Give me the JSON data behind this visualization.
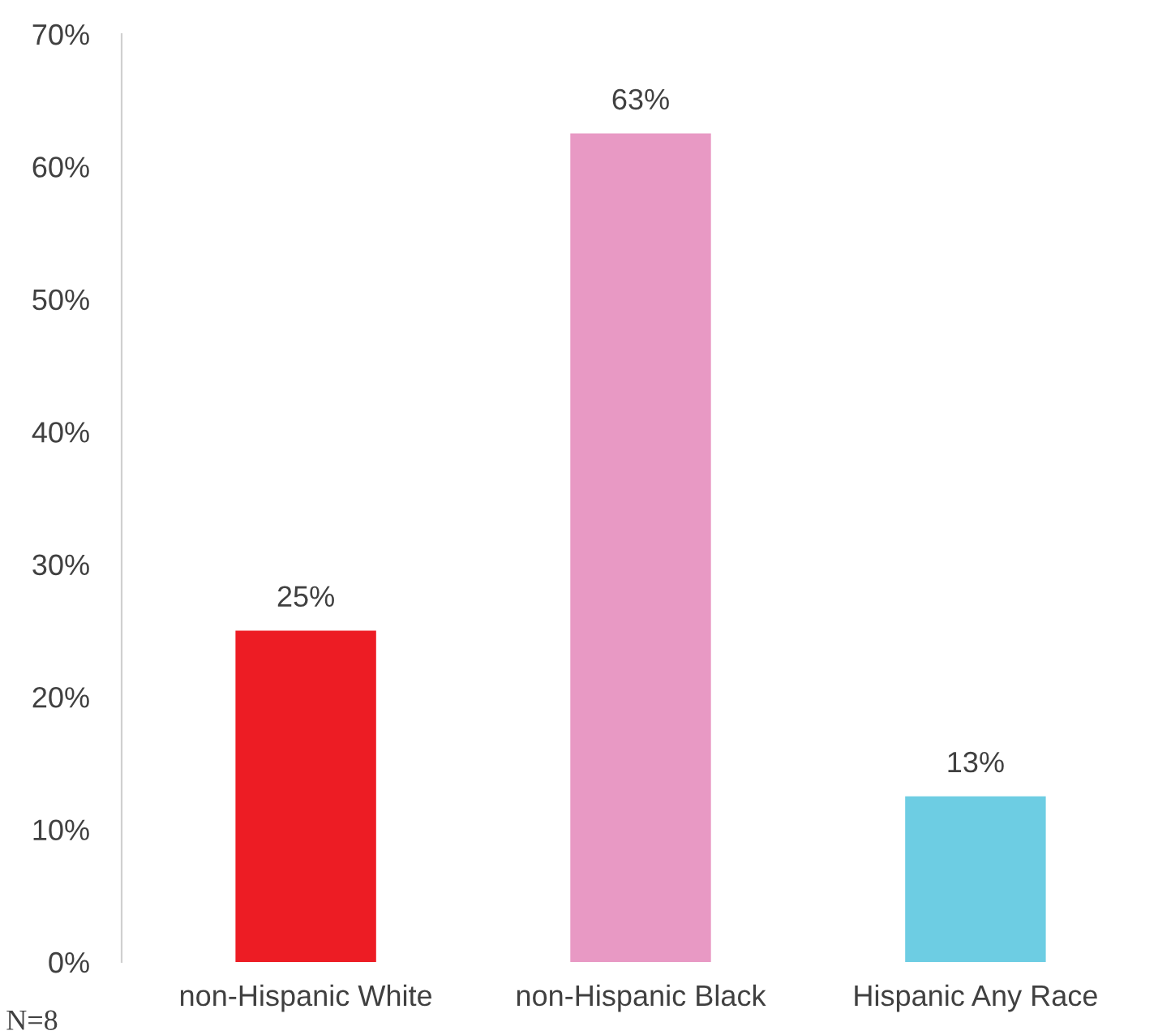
{
  "chart_data": {
    "type": "bar",
    "categories": [
      "non-Hispanic White",
      "non-Hispanic Black",
      "Hispanic Any Race"
    ],
    "values": [
      25,
      62.5,
      12.5
    ],
    "colors": [
      "#ed1c24",
      "#e899c4",
      "#6dcde3"
    ],
    "value_labels": [
      "25%",
      "63%",
      "13%"
    ],
    "ylim": [
      0,
      70
    ],
    "yticks": [
      {
        "value": 0,
        "label": "0%"
      },
      {
        "value": 10,
        "label": "10%"
      },
      {
        "value": 20,
        "label": "20%"
      },
      {
        "value": 30,
        "label": "30%"
      },
      {
        "value": 40,
        "label": "40%"
      },
      {
        "value": 50,
        "label": "50%"
      },
      {
        "value": 60,
        "label": "60%"
      },
      {
        "value": 70,
        "label": "70%"
      }
    ],
    "grid": false,
    "annotations": [
      "N=8"
    ]
  }
}
